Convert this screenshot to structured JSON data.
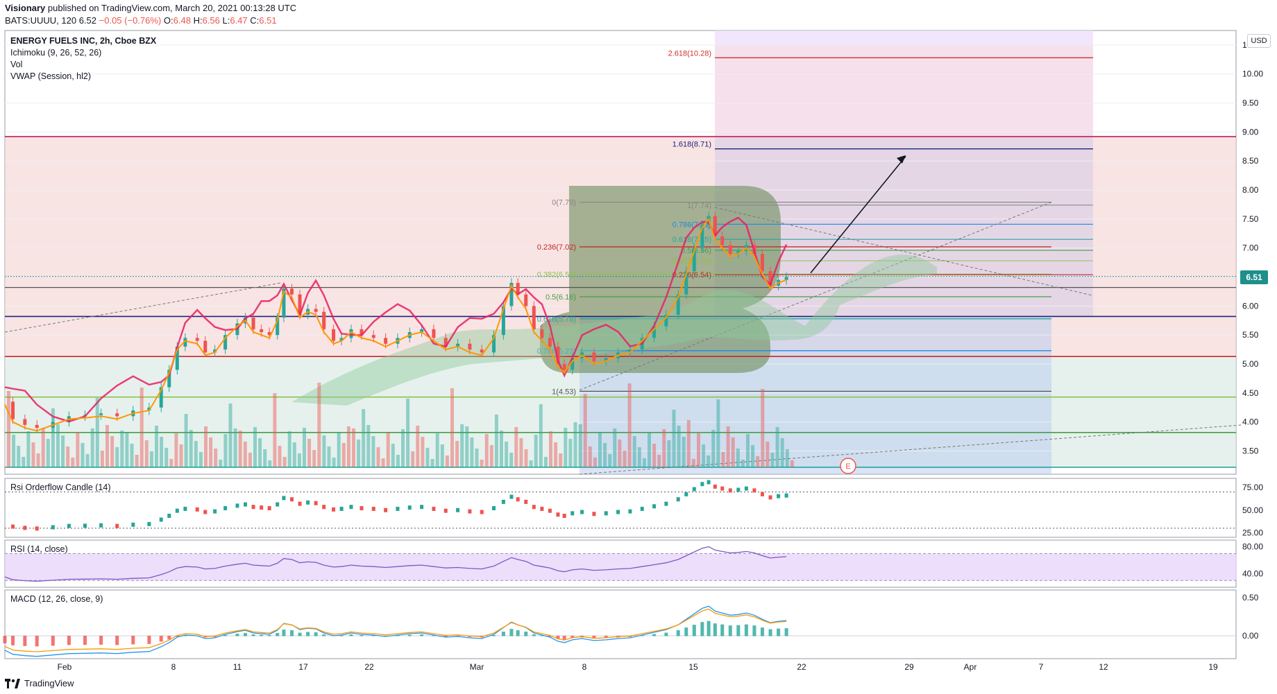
{
  "header": {
    "publisher": "Visionary",
    "published_text": "published on TradingView.com, March 20, 2021 00:13:28 UTC",
    "symbol": "BATS:UUUU, 120",
    "last": "6.52",
    "change": "−0.05 (−0.76%)",
    "ohlc": [
      {
        "k": "O:",
        "v": "6.48"
      },
      {
        "k": "H:",
        "v": "6.56"
      },
      {
        "k": "L:",
        "v": "6.47"
      },
      {
        "k": "C:",
        "v": "6.51"
      }
    ]
  },
  "legend": {
    "title": "ENERGY FUELS INC, 2h, Cboe BZX",
    "ichimoku": "Ichimoku (9, 26, 52, 26)",
    "vol": "Vol",
    "vwap": "VWAP (Session, hl2)"
  },
  "currency_button": "USD",
  "last_price_tag": "6.51",
  "earnings_marker": "E",
  "footer_brand": "TradingView",
  "colors": {
    "bull": "#26a69a",
    "bear": "#ef5350",
    "accent": "#2962ff",
    "rsi_band": "#e9d6fb"
  },
  "chart_data": [
    {
      "type": "candlestick",
      "title": "ENERGY FUELS INC, 2h, Cboe BZX",
      "x_tick_labels": [
        "Feb",
        "8",
        "11",
        "17",
        "22",
        "Mar",
        "8",
        "15",
        "22",
        "29",
        "Apr",
        "7",
        "12",
        "19"
      ],
      "y_ticks": [
        "10.50",
        "10.00",
        "9.50",
        "9.00",
        "8.50",
        "8.00",
        "7.50",
        "7.00",
        "6.50",
        "6.00",
        "5.50",
        "5.00",
        "4.50",
        "4.00",
        "3.50"
      ],
      "ylim": [
        3.1,
        10.75
      ],
      "last_price": 6.51,
      "price_path": [
        [
          0,
          4.35
        ],
        [
          10,
          4.05
        ],
        [
          25,
          3.95
        ],
        [
          40,
          3.9
        ],
        [
          60,
          4.0
        ],
        [
          80,
          4.1
        ],
        [
          100,
          4.12
        ],
        [
          120,
          4.15
        ],
        [
          140,
          4.1
        ],
        [
          160,
          4.2
        ],
        [
          180,
          4.25
        ],
        [
          195,
          4.6
        ],
        [
          205,
          4.9
        ],
        [
          215,
          5.3
        ],
        [
          225,
          5.45
        ],
        [
          240,
          5.4
        ],
        [
          250,
          5.2
        ],
        [
          262,
          5.25
        ],
        [
          275,
          5.5
        ],
        [
          290,
          5.7
        ],
        [
          300,
          5.8
        ],
        [
          310,
          5.6
        ],
        [
          320,
          5.55
        ],
        [
          330,
          5.5
        ],
        [
          340,
          5.8
        ],
        [
          348,
          6.3
        ],
        [
          358,
          6.2
        ],
        [
          368,
          5.85
        ],
        [
          378,
          5.95
        ],
        [
          388,
          5.9
        ],
        [
          398,
          5.6
        ],
        [
          410,
          5.4
        ],
        [
          420,
          5.45
        ],
        [
          432,
          5.6
        ],
        [
          445,
          5.5
        ],
        [
          460,
          5.45
        ],
        [
          475,
          5.35
        ],
        [
          490,
          5.45
        ],
        [
          505,
          5.55
        ],
        [
          520,
          5.6
        ],
        [
          535,
          5.45
        ],
        [
          550,
          5.3
        ],
        [
          565,
          5.35
        ],
        [
          580,
          5.25
        ],
        [
          595,
          5.2
        ],
        [
          610,
          5.5
        ],
        [
          622,
          6.0
        ],
        [
          632,
          6.4
        ],
        [
          640,
          6.2
        ],
        [
          650,
          6.0
        ],
        [
          660,
          5.6
        ],
        [
          670,
          5.45
        ],
        [
          680,
          5.3
        ],
        [
          690,
          5.0
        ],
        [
          698,
          4.9
        ],
        [
          708,
          5.1
        ],
        [
          720,
          5.2
        ],
        [
          735,
          5.05
        ],
        [
          750,
          5.1
        ],
        [
          765,
          5.2
        ],
        [
          780,
          5.25
        ],
        [
          795,
          5.45
        ],
        [
          810,
          5.65
        ],
        [
          825,
          5.85
        ],
        [
          840,
          6.2
        ],
        [
          850,
          6.6
        ],
        [
          860,
          7.0
        ],
        [
          870,
          7.4
        ],
        [
          878,
          7.55
        ],
        [
          886,
          7.2
        ],
        [
          895,
          7.05
        ],
        [
          905,
          6.9
        ],
        [
          915,
          6.95
        ],
        [
          925,
          7.05
        ],
        [
          935,
          6.9
        ],
        [
          945,
          6.6
        ],
        [
          955,
          6.35
        ],
        [
          965,
          6.45
        ],
        [
          975,
          6.5
        ]
      ],
      "fibonacci_extension": [
        {
          "label": "2.618(10.28)",
          "value": 10.28
        },
        {
          "label": "1.618(8.71)",
          "value": 8.71
        }
      ],
      "fibonacci_retracement": [
        {
          "label": "0(7.79)",
          "value": 7.79
        },
        {
          "label": "0.236(7.02)",
          "value": 7.02
        },
        {
          "label": "0.382(6.55)",
          "value": 6.55
        },
        {
          "label": "0.5(6.16)",
          "value": 6.16
        },
        {
          "label": "0.618(5.78)",
          "value": 5.78
        },
        {
          "label": "0.786(5.23)",
          "value": 5.23
        },
        {
          "label": "1(4.53)",
          "value": 4.53
        }
      ],
      "fibonacci_inner": [
        {
          "label": "1(7.74)",
          "value": 7.74
        },
        {
          "label": "0.786(7.41)",
          "value": 7.41
        },
        {
          "label": "0.618(7.15)",
          "value": 7.15
        },
        {
          "label": "0.5(6.96)",
          "value": 6.96
        },
        {
          "label": "0.382(6.78)",
          "value": 6.78
        },
        {
          "label": "0.236(6.54)",
          "value": 6.54
        }
      ],
      "horizontal_levels": [
        {
          "value": 8.92,
          "color": "#c2185b"
        },
        {
          "value": 5.82,
          "color": "#1a237e"
        },
        {
          "value": 5.13,
          "color": "#c62828"
        },
        {
          "value": 4.43,
          "color": "#8bc34a"
        },
        {
          "value": 3.82,
          "color": "#43a047"
        },
        {
          "value": 3.22,
          "color": "#26a69a"
        }
      ]
    },
    {
      "type": "line",
      "title": "Rsi Orderflow Candle (14)",
      "y_ticks": [
        "75.00",
        "50.00",
        "25.00"
      ],
      "ylim": [
        20,
        85
      ],
      "guide_lines": [
        70,
        30
      ]
    },
    {
      "type": "line",
      "title": "RSI (14, close)",
      "y_ticks": [
        "80.00",
        "40.00"
      ],
      "ylim": [
        20,
        90
      ],
      "band": [
        30,
        70
      ]
    },
    {
      "type": "bar",
      "title": "MACD (12, 26, close, 9)",
      "y_ticks": [
        "0.50",
        "0.00"
      ],
      "ylim": [
        -0.3,
        0.6
      ]
    }
  ]
}
